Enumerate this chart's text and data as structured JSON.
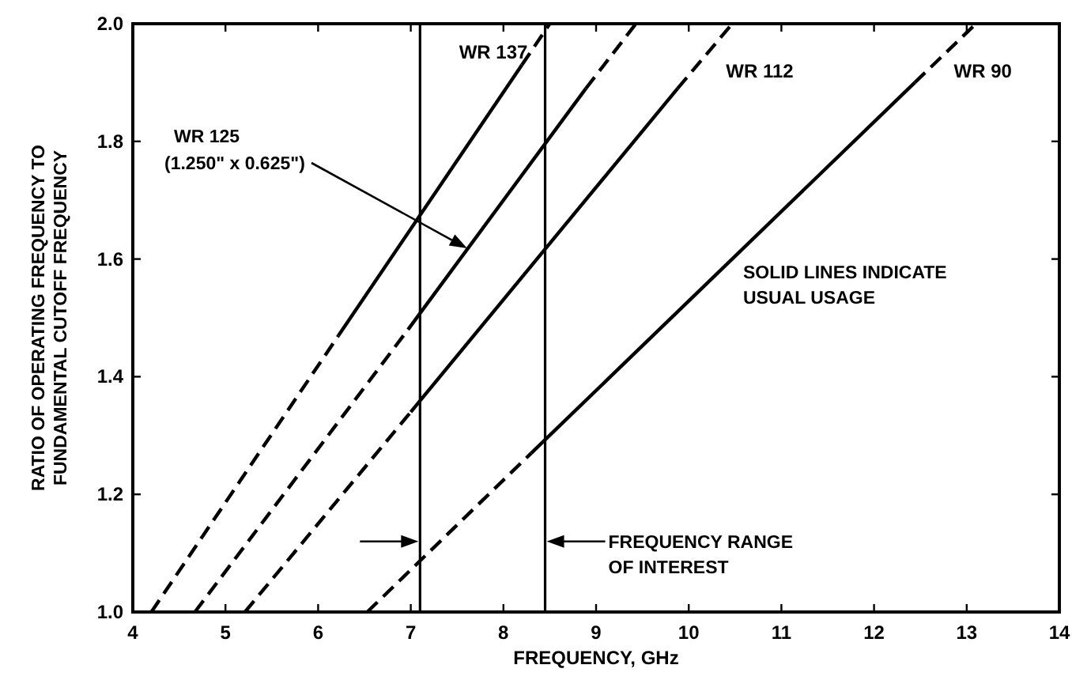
{
  "chart_data": {
    "type": "line",
    "xlabel": "FREQUENCY, GHz",
    "ylabel": "RATIO OF OPERATING FREQUENCY TO\nFUNDAMENTAL CUTOFF FREQUENCY",
    "xlim": [
      4,
      14
    ],
    "xticks": [
      4,
      5,
      6,
      7,
      8,
      9,
      10,
      11,
      12,
      13,
      14
    ],
    "ylim": [
      1.0,
      2.0
    ],
    "yticks": [
      {
        "value": 1.0,
        "label": "1.0"
      },
      {
        "value": 1.2,
        "label": "1.2"
      },
      {
        "value": 1.4,
        "label": "1.4"
      },
      {
        "value": 1.6,
        "label": "1.6"
      },
      {
        "value": 1.8,
        "label": "1.8"
      },
      {
        "value": 2.0,
        "label": "2.0"
      }
    ],
    "grid": false,
    "series": [
      {
        "color": "#000000",
        "line_style": "dashed",
        "x": [
          4.2,
          6.22
        ],
        "values": [
          1.0,
          1.47
        ]
      },
      {
        "name": "WR 137",
        "color": "#000000",
        "line_style": "solid",
        "x": [
          6.22,
          8.2
        ],
        "values": [
          1.47,
          1.93
        ]
      },
      {
        "color": "#000000",
        "line_style": "dashed",
        "x": [
          8.2,
          8.5
        ],
        "values": [
          1.93,
          2.0
        ]
      },
      {
        "color": "#000000",
        "line_style": "dashed",
        "x": [
          4.67,
          6.97
        ],
        "values": [
          1.0,
          1.48
        ]
      },
      {
        "color": "#000000",
        "line_style": "solid",
        "x": [
          6.97,
          8.89
        ],
        "values": [
          1.48,
          1.89
        ]
      },
      {
        "color": "#000000",
        "line_style": "dashed",
        "x": [
          8.89,
          9.43
        ],
        "values": [
          1.89,
          2.0
        ]
      },
      {
        "color": "#000000",
        "line_style": "dashed",
        "x": [
          5.21,
          7.0
        ],
        "values": [
          1.0,
          1.34
        ]
      },
      {
        "name": "WR 112",
        "color": "#000000",
        "line_style": "solid",
        "x": [
          7.0,
          9.88
        ],
        "values": [
          1.34,
          1.89
        ]
      },
      {
        "color": "#000000",
        "line_style": "dashed",
        "x": [
          9.88,
          10.47
        ],
        "values": [
          1.89,
          2.0
        ]
      },
      {
        "color": "#000000",
        "line_style": "dashed",
        "x": [
          6.53,
          8.3
        ],
        "values": [
          1.0,
          1.27
        ]
      },
      {
        "name": "WR 90",
        "color": "#000000",
        "line_style": "solid",
        "x": [
          8.3,
          12.44
        ],
        "values": [
          1.27,
          1.9
        ]
      },
      {
        "color": "#000000",
        "line_style": "dashed",
        "x": [
          12.44,
          13.1
        ],
        "values": [
          1.9,
          2.0
        ]
      }
    ],
    "ref_lines": [
      {
        "axis": "x",
        "value": 7.1,
        "color": "#000000"
      },
      {
        "axis": "x",
        "value": 8.45,
        "color": "#000000"
      }
    ],
    "annotations": [
      "WR 125\n(1.250\" x 0.625\")",
      "SOLID LINES INDICATE\nUSUAL USAGE",
      "FREQUENCY RANGE\nOF INTEREST"
    ]
  }
}
